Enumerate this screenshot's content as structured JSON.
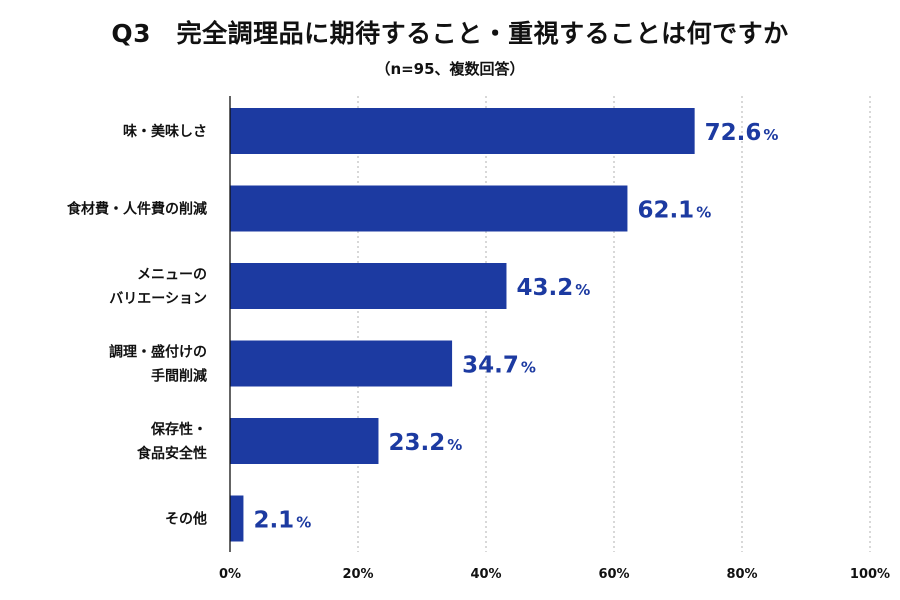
{
  "title": "Q3　完全調理品に期待すること・重視することは何ですか",
  "subtitle": "（n=95、複数回答）",
  "colors": {
    "bar": "#1c3aa1",
    "label": "#1c3aa1",
    "grid": "#bdbdbd",
    "axis": "#111111"
  },
  "chart_data": {
    "type": "bar",
    "orientation": "horizontal",
    "categories": [
      [
        "味・美味しさ"
      ],
      [
        "食材費・人件費の削減"
      ],
      [
        "メニューの",
        "バリエーション"
      ],
      [
        "調理・盛付けの",
        "手間削減"
      ],
      [
        "保存性・",
        "食品安全性"
      ],
      [
        "その他"
      ]
    ],
    "values": [
      72.6,
      62.1,
      43.2,
      34.7,
      23.2,
      2.1
    ],
    "value_unit": "%",
    "xlim": [
      0,
      100
    ],
    "xticks": [
      0,
      20,
      40,
      60,
      80,
      100
    ],
    "xtick_labels": [
      "0%",
      "20%",
      "40%",
      "60%",
      "80%",
      "100%"
    ],
    "grid": "vertical dotted",
    "legend": "none"
  }
}
